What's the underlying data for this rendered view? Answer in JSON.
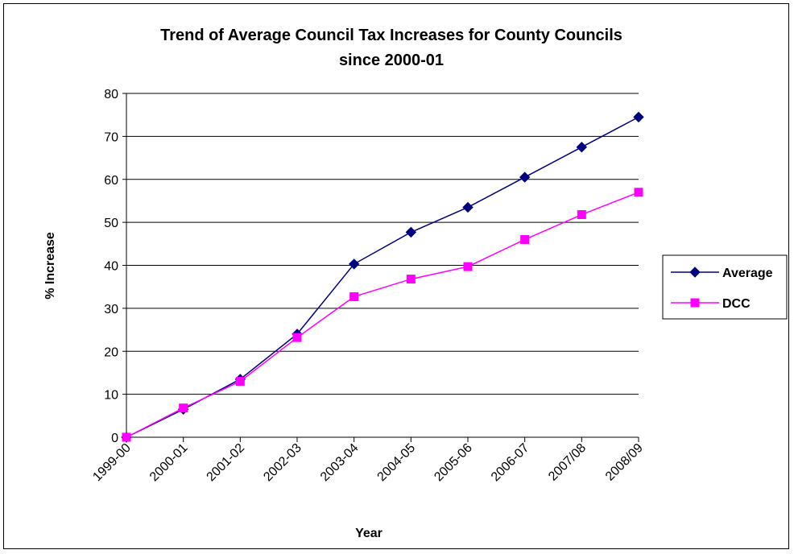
{
  "chart_data": {
    "type": "line",
    "title": "Trend of Average Council Tax Increases for County Councils",
    "title_line2": "since 2000-01",
    "xlabel": "Year",
    "ylabel": "% Increase",
    "categories": [
      "1999-00",
      "2000-01",
      "2001-02",
      "2002-03",
      "2003-04",
      "2004-05",
      "2005-06",
      "2006-07",
      "2007/08",
      "2008/09"
    ],
    "ylim": [
      0,
      80
    ],
    "yticks": [
      "0",
      "10",
      "20",
      "30",
      "40",
      "50",
      "60",
      "70",
      "80"
    ],
    "grid": true,
    "legend_position": "right",
    "series": [
      {
        "name": "Average",
        "color": "#000080",
        "marker": "diamond",
        "values": [
          0,
          6.5,
          13.5,
          24,
          40.3,
          47.7,
          53.5,
          60.5,
          67.5,
          74.5
        ]
      },
      {
        "name": "DCC",
        "color": "#ff00ff",
        "marker": "square",
        "values": [
          0,
          6.8,
          13,
          23.2,
          32.7,
          36.8,
          39.7,
          46,
          51.8,
          57
        ]
      }
    ]
  }
}
